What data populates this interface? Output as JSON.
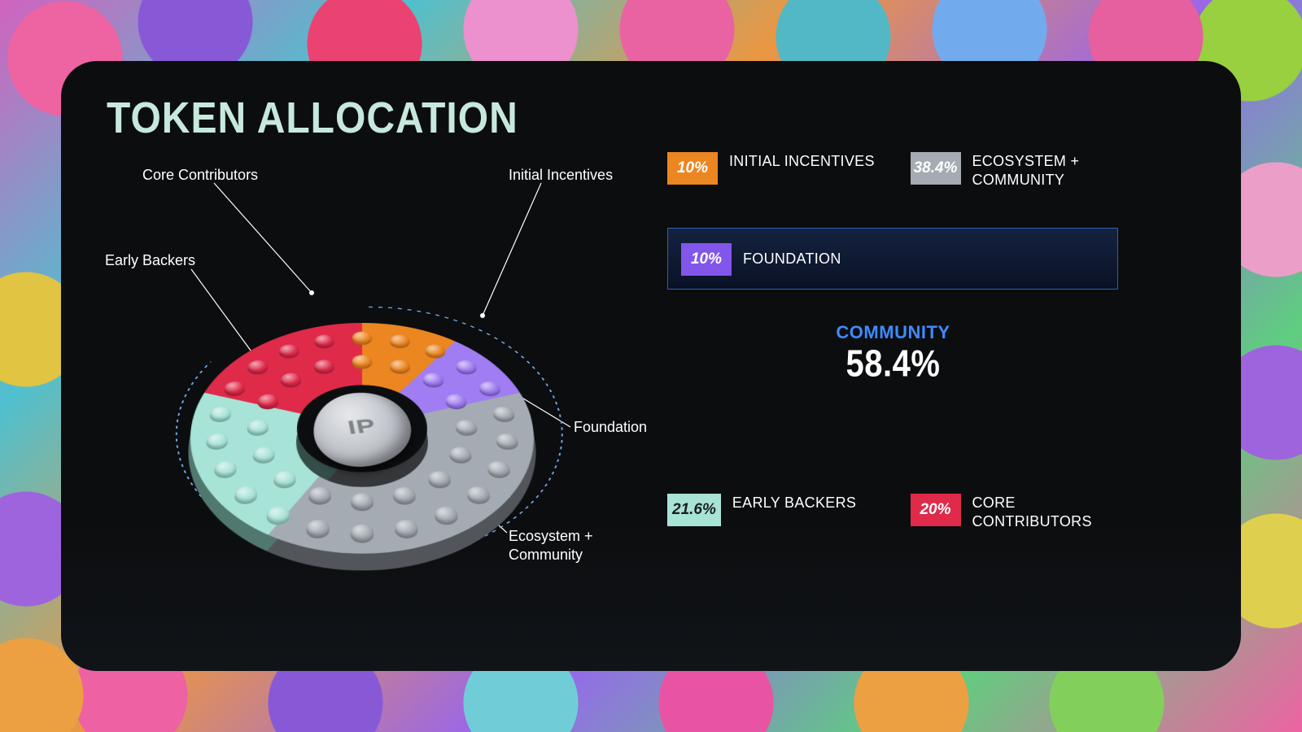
{
  "title": "TOKEN ALLOCATION",
  "title_color": "#c6e8dd",
  "panel_bg": "#0c0d0f",
  "center_label": "IP",
  "chart": {
    "type": "donut-3d",
    "inner_radius_ratio": 0.38,
    "tilt_deg": 48,
    "dashed_arc_color": "#6fa6e8",
    "segments": [
      {
        "key": "core_contributors",
        "label": "Core Contributors",
        "pct": 20.0,
        "color": "#df2a4a",
        "color_dark": "#a01e36",
        "start_deg": 288,
        "end_deg": 360
      },
      {
        "key": "initial_incentives",
        "label": "Initial Incentives",
        "pct": 10.0,
        "color": "#ec8621",
        "color_dark": "#b3631a",
        "start_deg": 0,
        "end_deg": 36
      },
      {
        "key": "foundation",
        "label": "Foundation",
        "pct": 10.0,
        "color": "#a07df2",
        "color_dark": "#6e53b8",
        "start_deg": 36,
        "end_deg": 72
      },
      {
        "key": "ecosystem_community",
        "label": "Ecosystem + Community",
        "pct": 38.4,
        "color": "#a4abb2",
        "color_dark": "#757b82",
        "start_deg": 72,
        "end_deg": 210.24
      },
      {
        "key": "early_backers",
        "label": "Early Backers",
        "pct": 21.6,
        "color": "#a8e3d7",
        "color_dark": "#73ab9f",
        "start_deg": 210.24,
        "end_deg": 288
      }
    ]
  },
  "legend": {
    "row1": [
      {
        "pct_text": "10%",
        "label": "INITIAL INCENTIVES",
        "bg": "#ec8621",
        "fg": "#ffffff"
      },
      {
        "pct_text": "38.4%",
        "label": "ECOSYSTEM + COMMUNITY",
        "bg": "#a4abb2",
        "fg": "#ffffff"
      }
    ],
    "highlight": {
      "pct_text": "10%",
      "label": "FOUNDATION",
      "bg": "#8256ea",
      "fg": "#ffffff",
      "border": "#2c5fbb"
    },
    "community": {
      "title": "COMMUNITY",
      "pct_text": "58.4%",
      "title_color": "#3d8bff"
    },
    "row2": [
      {
        "pct_text": "21.6%",
        "label": "EARLY BACKERS",
        "bg": "#a8e3d7",
        "fg": "#1b1f20"
      },
      {
        "pct_text": "20%",
        "label": "CORE CONTRIBUTORS",
        "bg": "#df2a4a",
        "fg": "#ffffff"
      }
    ]
  },
  "callouts": {
    "core_contributors": "Core Contributors",
    "initial_incentives": "Initial Incentives",
    "early_backers": "Early Backers",
    "foundation": "Foundation",
    "ecosystem_community": "Ecosystem +\nCommunity"
  }
}
